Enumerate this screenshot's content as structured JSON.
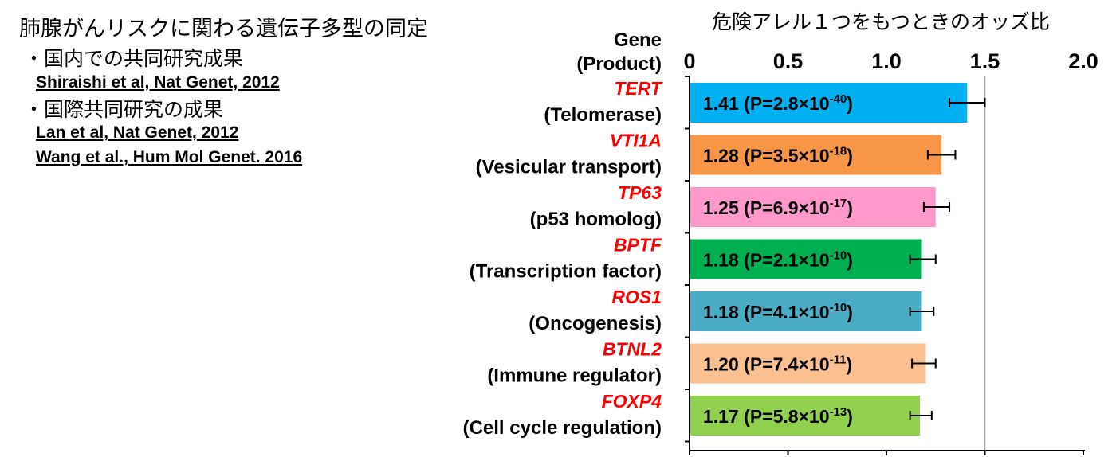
{
  "left_panel": {
    "title": "肺腺がんリスクに関わる遺伝子多型の同定",
    "bullet1": "・国内での共同研究成果",
    "ref1": "Shiraishi et al, Nat Genet, 2012",
    "bullet2": "・国際共同研究の成果",
    "ref2": "Lan et al, Nat Genet, 2012",
    "ref3": "Wang et al., Hum Mol Genet. 2016"
  },
  "chart_data": {
    "type": "bar",
    "orientation": "horizontal",
    "title": "危険アレル１つをもつときのオッズ比",
    "category_header_line1": "Gene",
    "category_header_line2": "(Product)",
    "xlim": [
      0,
      2.0
    ],
    "x_ticks": [
      "0",
      "0.5",
      "1.0",
      "1.5",
      "2.0"
    ],
    "grid": "vertical lines at 1.5",
    "categories": [
      {
        "gene": "TERT",
        "product": "(Telomerase)",
        "value": 1.41,
        "err_low": 1.32,
        "err_high": 1.5,
        "label": "1.41 (P=2.8×10",
        "exp": "-40",
        "label_end": ")",
        "color": "#00B0F0"
      },
      {
        "gene": "VTI1A",
        "product": "(Vesicular transport)",
        "value": 1.28,
        "err_low": 1.21,
        "err_high": 1.35,
        "label": "1.28 (P=3.5×10",
        "exp": "-18",
        "label_end": ")",
        "color": "#F79646"
      },
      {
        "gene": "TP63",
        "product": "(p53 homolog)",
        "value": 1.25,
        "err_low": 1.19,
        "err_high": 1.32,
        "label": "1.25 (P=6.9×10",
        "exp": "-17",
        "label_end": ")",
        "color": "#FF99CC"
      },
      {
        "gene": "BPTF",
        "product": "(Transcription factor)",
        "value": 1.18,
        "err_low": 1.12,
        "err_high": 1.25,
        "label": "1.18 (P=2.1×10",
        "exp": "-10",
        "label_end": ")",
        "color": "#00B050"
      },
      {
        "gene": "ROS1",
        "product": "(Oncogenesis)",
        "value": 1.18,
        "err_low": 1.12,
        "err_high": 1.24,
        "label": "1.18 (P=4.1×10",
        "exp": "-10",
        "label_end": ")",
        "color": "#4BACC6"
      },
      {
        "gene": "BTNL2",
        "product": "(Immune regulator)",
        "value": 1.2,
        "err_low": 1.13,
        "err_high": 1.25,
        "label": "1.20 (P=7.4×10",
        "exp": "-11",
        "label_end": ")",
        "color": "#FAC090"
      },
      {
        "gene": "FOXP4",
        "product": "(Cell cycle regulation)",
        "value": 1.17,
        "err_low": 1.12,
        "err_high": 1.23,
        "label": "1.17 (P=5.8×10",
        "exp": "-13",
        "label_end": ")",
        "color": "#92D050"
      }
    ],
    "colors": {
      "gene_text": "#FF0000",
      "axis": "#000000",
      "grid": "#A6A6A6"
    }
  }
}
